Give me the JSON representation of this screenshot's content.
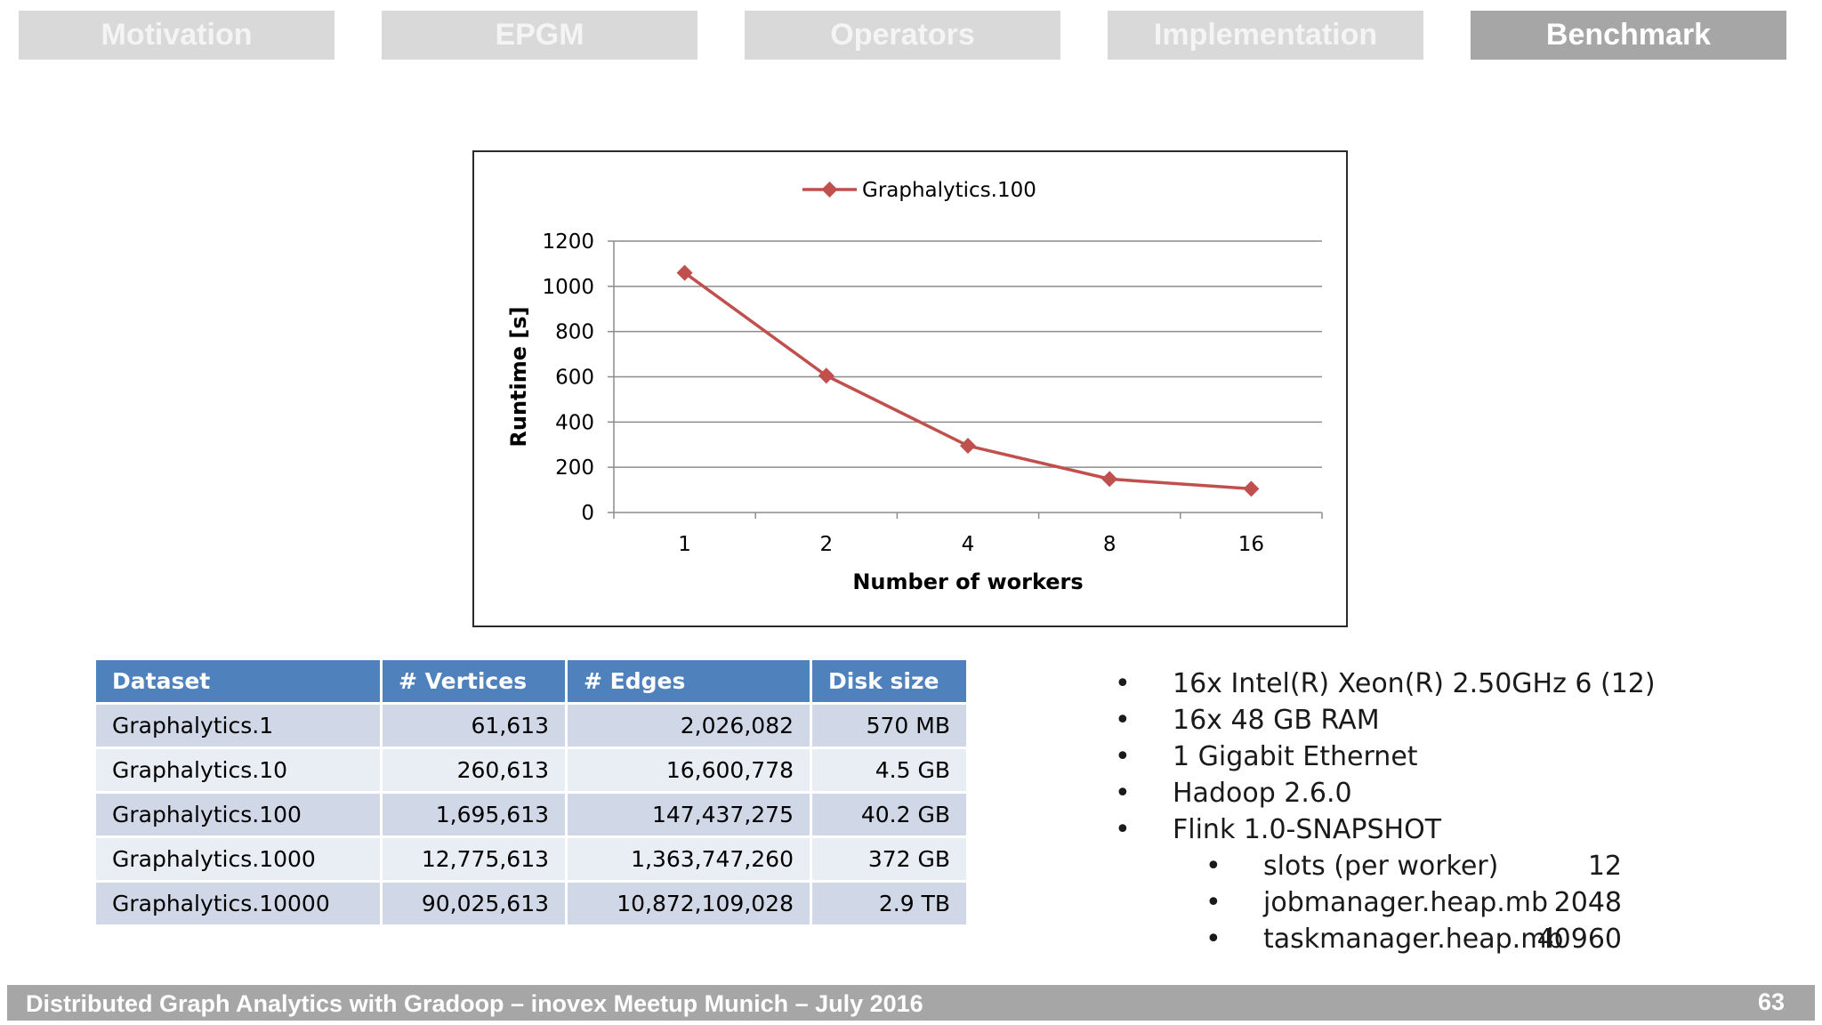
{
  "nav": {
    "tabs": [
      {
        "label": "Motivation",
        "active": false
      },
      {
        "label": "EPGM",
        "active": false
      },
      {
        "label": "Operators",
        "active": false
      },
      {
        "label": "Implementation",
        "active": false
      },
      {
        "label": "Benchmark",
        "active": true
      }
    ]
  },
  "chart_data": {
    "type": "line",
    "title": "",
    "xlabel": "Number of workers",
    "ylabel": "Runtime [s]",
    "categories": [
      "1",
      "2",
      "4",
      "8",
      "16"
    ],
    "series": [
      {
        "name": "Graphalytics.100",
        "values": [
          1060,
          605,
          295,
          148,
          105
        ],
        "color": "#c0504d"
      }
    ],
    "ylim": [
      0,
      1200
    ],
    "yticks": [
      0,
      200,
      400,
      600,
      800,
      1000,
      1200
    ],
    "grid": true,
    "legend": "top-center"
  },
  "table": {
    "headers": [
      "Dataset",
      "# Vertices",
      "# Edges",
      "Disk size"
    ],
    "rows": [
      [
        "Graphalytics.1",
        "61,613",
        "2,026,082",
        "570 MB"
      ],
      [
        "Graphalytics.10",
        "260,613",
        "16,600,778",
        "4.5 GB"
      ],
      [
        "Graphalytics.100",
        "1,695,613",
        "147,437,275",
        "40.2 GB"
      ],
      [
        "Graphalytics.1000",
        "12,775,613",
        "1,363,747,260",
        "372 GB"
      ],
      [
        "Graphalytics.10000",
        "90,025,613",
        "10,872,109,028",
        "2.9 TB"
      ]
    ]
  },
  "specs": {
    "items": [
      "16x Intel(R) Xeon(R) 2.50GHz 6 (12)",
      "16x 48 GB RAM",
      "1 Gigabit Ethernet",
      "Hadoop 2.6.0",
      "Flink 1.0-SNAPSHOT"
    ],
    "flink_settings": [
      {
        "key": "slots (per worker)",
        "value": "12"
      },
      {
        "key": "jobmanager.heap.mb",
        "value": "2048"
      },
      {
        "key": "taskmanager.heap.mb",
        "value": "40960"
      }
    ]
  },
  "footer": {
    "text": "Distributed Graph Analytics with Gradoop – inovex Meetup Munich – July 2016",
    "page": "63"
  }
}
